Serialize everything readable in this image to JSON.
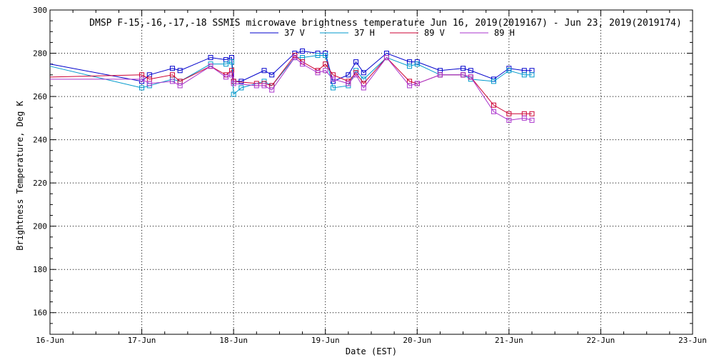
{
  "chart_data": {
    "type": "line",
    "title": "DMSP F-15,-16,-17,-18 SSMIS microwave brightness temperature Jun 16, 2019(2019167) - Jun 23, 2019(2019174)",
    "xlabel": "Date (EST)",
    "ylabel": "Brightness Temperature, Deg K",
    "xlim": [
      "2019-06-16",
      "2019-06-23"
    ],
    "ylim": [
      150,
      300
    ],
    "grid": true,
    "legend_position": "top",
    "x_ticks": [
      "16-Jun",
      "17-Jun",
      "18-Jun",
      "19-Jun",
      "20-Jun",
      "21-Jun",
      "22-Jun",
      "23-Jun"
    ],
    "y_ticks": [
      "160",
      "180",
      "200",
      "220",
      "240",
      "260",
      "280",
      "300"
    ],
    "x": [
      "2019-06-16T00:00",
      "2019-06-17T00:00",
      "2019-06-17T02:00",
      "2019-06-17T08:00",
      "2019-06-17T10:00",
      "2019-06-17T18:00",
      "2019-06-17T22:00",
      "2019-06-18T00:00",
      "2019-06-18T02:00",
      "2019-06-18T06:00",
      "2019-06-18T08:00",
      "2019-06-18T12:00",
      "2019-06-18T14:00",
      "2019-06-18T18:00",
      "2019-06-18T20:00",
      "2019-06-19T00:00",
      "2019-06-19T02:00",
      "2019-06-19T08:00",
      "2019-06-19T10:00",
      "2019-06-19T16:00",
      "2019-06-19T22:00",
      "2019-06-20T00:00",
      "2019-06-20T06:00",
      "2019-06-20T12:00",
      "2019-06-20T16:00",
      "2019-06-20T19:00",
      "2019-06-20T22:00",
      "2019-06-21T00:00"
    ],
    "x_extra_note": "",
    "series": [
      {
        "name": "37 V",
        "color": "#0000cc",
        "values": [
          275,
          267,
          270,
          273,
          272,
          278,
          277,
          278,
          267,
          267,
          272,
          270,
          280,
          281,
          280,
          280,
          267,
          270,
          276,
          271,
          280,
          276,
          276,
          272,
          273,
          272,
          268,
          273,
          272,
          272
        ],
        "x": [
          "2019-06-16T00:00",
          "2019-06-17T00:00",
          "2019-06-17T02:00",
          "2019-06-17T08:00",
          "2019-06-17T10:00",
          "2019-06-17T18:00",
          "2019-06-17T22:00",
          "2019-06-17T23:30",
          "2019-06-18T00:00",
          "2019-06-18T02:00",
          "2019-06-18T08:00",
          "2019-06-18T10:00",
          "2019-06-18T16:00",
          "2019-06-18T18:00",
          "2019-06-18T22:00",
          "2019-06-19T00:00",
          "2019-06-19T02:00",
          "2019-06-19T06:00",
          "2019-06-19T08:00",
          "2019-06-19T10:00",
          "2019-06-19T16:00",
          "2019-06-19T22:00",
          "2019-06-20T00:00",
          "2019-06-20T06:00",
          "2019-06-20T12:00",
          "2019-06-20T14:00",
          "2019-06-20T20:00",
          "2019-06-21T00:00",
          "2019-06-21T04:00",
          "2019-06-21T06:00"
        ]
      },
      {
        "name": "37 H",
        "color": "#0099cc",
        "values": [
          274,
          264,
          265,
          268,
          267,
          275,
          275,
          276,
          261,
          264,
          267,
          265,
          278,
          278,
          279,
          279,
          264,
          265,
          272,
          268,
          278,
          274,
          275,
          270,
          270,
          268,
          267,
          272,
          270,
          270
        ],
        "x": [
          "2019-06-16T00:00",
          "2019-06-17T00:00",
          "2019-06-17T02:00",
          "2019-06-17T08:00",
          "2019-06-17T10:00",
          "2019-06-17T18:00",
          "2019-06-17T22:00",
          "2019-06-17T23:30",
          "2019-06-18T00:00",
          "2019-06-18T02:00",
          "2019-06-18T08:00",
          "2019-06-18T10:00",
          "2019-06-18T16:00",
          "2019-06-18T18:00",
          "2019-06-18T22:00",
          "2019-06-19T00:00",
          "2019-06-19T02:00",
          "2019-06-19T06:00",
          "2019-06-19T08:00",
          "2019-06-19T10:00",
          "2019-06-19T16:00",
          "2019-06-19T22:00",
          "2019-06-20T00:00",
          "2019-06-20T06:00",
          "2019-06-20T12:00",
          "2019-06-20T14:00",
          "2019-06-20T20:00",
          "2019-06-21T00:00",
          "2019-06-21T04:00",
          "2019-06-21T06:00"
        ]
      },
      {
        "name": "89 V",
        "color": "#cc0033",
        "values": [
          269,
          270,
          268,
          270,
          267,
          274,
          270,
          272,
          267,
          266,
          266,
          265,
          279,
          276,
          272,
          275,
          270,
          267,
          271,
          266,
          278,
          267,
          266,
          270,
          270,
          269,
          256,
          252,
          252,
          252
        ],
        "x": [
          "2019-06-16T00:00",
          "2019-06-17T00:00",
          "2019-06-17T02:00",
          "2019-06-17T08:00",
          "2019-06-17T10:00",
          "2019-06-17T18:00",
          "2019-06-17T22:00",
          "2019-06-17T23:30",
          "2019-06-18T00:00",
          "2019-06-18T06:00",
          "2019-06-18T08:00",
          "2019-06-18T10:00",
          "2019-06-18T16:00",
          "2019-06-18T18:00",
          "2019-06-18T22:00",
          "2019-06-19T00:00",
          "2019-06-19T02:00",
          "2019-06-19T06:00",
          "2019-06-19T08:00",
          "2019-06-19T10:00",
          "2019-06-19T16:00",
          "2019-06-19T22:00",
          "2019-06-20T00:00",
          "2019-06-20T06:00",
          "2019-06-20T12:00",
          "2019-06-20T14:00",
          "2019-06-20T20:00",
          "2019-06-21T00:00",
          "2019-06-21T04:00",
          "2019-06-21T06:00"
        ]
      },
      {
        "name": "89 H",
        "color": "#aa33cc",
        "values": [
          268,
          268,
          266,
          267,
          265,
          274,
          269,
          270,
          266,
          265,
          265,
          263,
          278,
          275,
          271,
          272,
          268,
          266,
          270,
          264,
          278,
          265,
          266,
          270,
          270,
          269,
          253,
          249,
          250,
          249
        ],
        "x": [
          "2019-06-16T00:00",
          "2019-06-17T00:00",
          "2019-06-17T02:00",
          "2019-06-17T08:00",
          "2019-06-17T10:00",
          "2019-06-17T18:00",
          "2019-06-17T22:00",
          "2019-06-17T23:30",
          "2019-06-18T00:00",
          "2019-06-18T06:00",
          "2019-06-18T08:00",
          "2019-06-18T10:00",
          "2019-06-18T16:00",
          "2019-06-18T18:00",
          "2019-06-18T22:00",
          "2019-06-19T00:00",
          "2019-06-19T02:00",
          "2019-06-19T06:00",
          "2019-06-19T08:00",
          "2019-06-19T10:00",
          "2019-06-19T16:00",
          "2019-06-19T22:00",
          "2019-06-20T00:00",
          "2019-06-20T06:00",
          "2019-06-20T12:00",
          "2019-06-20T14:00",
          "2019-06-20T20:00",
          "2019-06-21T00:00",
          "2019-06-21T04:00",
          "2019-06-21T06:00"
        ]
      }
    ]
  }
}
